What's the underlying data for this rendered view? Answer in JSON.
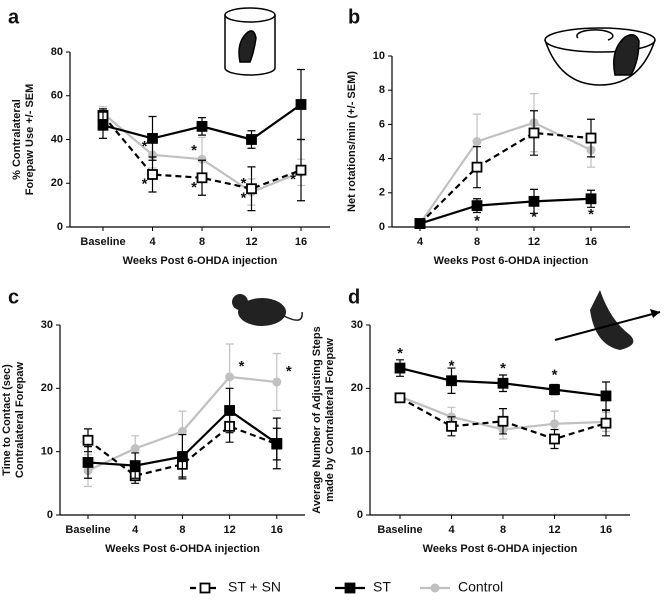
{
  "chart_data": [
    {
      "type": "line",
      "panel": "a",
      "xlabel": "Weeks Post 6-OHDA injection",
      "ylabel": [
        "% Contralateral",
        "Forepaw Use +/- SEM"
      ],
      "categories": [
        "Baseline",
        "4",
        "8",
        "12",
        "16"
      ],
      "ylim": [
        0,
        80
      ],
      "yticks": [
        0,
        20,
        40,
        60,
        80
      ],
      "series": [
        {
          "name": "ST + SN",
          "color": "#000000",
          "dashed": true,
          "marker": "open-square",
          "values": [
            51,
            24,
            22.5,
            17.5,
            26
          ],
          "errors": [
            3,
            8,
            8,
            10,
            14
          ],
          "sig": [
            null,
            "*",
            "*",
            "*",
            "*"
          ]
        },
        {
          "name": "ST",
          "color": "#000000",
          "dashed": false,
          "marker": "filled-square",
          "values": [
            46.5,
            40.5,
            46,
            40,
            56
          ],
          "errors": [
            6,
            10,
            4,
            4,
            16
          ],
          "sig": [
            null,
            null,
            null,
            null,
            null
          ]
        },
        {
          "name": "Control",
          "color": "#c0c0c0",
          "dashed": false,
          "marker": "circle",
          "values": [
            52,
            33,
            31,
            16,
            25
          ],
          "errors": [
            3,
            6,
            10,
            6,
            6
          ],
          "sig": [
            null,
            "*",
            "*",
            "*",
            null
          ]
        }
      ]
    },
    {
      "type": "line",
      "panel": "b",
      "xlabel": "Weeks Post 6-OHDA injection",
      "ylabel": [
        "Net rotations/min (+/- SEM)"
      ],
      "categories": [
        "4",
        "8",
        "12",
        "16"
      ],
      "ylim": [
        0,
        10
      ],
      "yticks": [
        0,
        2,
        4,
        6,
        8,
        10
      ],
      "series": [
        {
          "values": [
            0.2,
            3.5,
            5.5,
            5.2
          ],
          "errors": [
            0.1,
            1.2,
            1.3,
            1.1
          ],
          "sig": [
            null,
            null,
            null,
            null
          ]
        },
        {
          "values": [
            0.2,
            1.25,
            1.5,
            1.65
          ],
          "errors": [
            0.1,
            0.4,
            0.7,
            0.5
          ],
          "sig": [
            null,
            "*",
            "*",
            "*"
          ]
        },
        {
          "values": [
            0.2,
            5.0,
            6.1,
            4.5
          ],
          "errors": [
            0.1,
            1.6,
            1.7,
            1.0
          ],
          "sig": [
            null,
            null,
            null,
            null
          ]
        }
      ]
    },
    {
      "type": "line",
      "panel": "c",
      "xlabel": "Weeks Post 6-OHDA injection",
      "ylabel": [
        "Time to Contact (sec)",
        "Contralateral Forepaw"
      ],
      "categories": [
        "Baseline",
        "4",
        "8",
        "12",
        "16"
      ],
      "ylim": [
        0,
        30
      ],
      "yticks": [
        0,
        10,
        20,
        30
      ],
      "series": [
        {
          "values": [
            11.8,
            6.2,
            8,
            14,
            11.2
          ],
          "errors": [
            1.8,
            1.2,
            2,
            2.5,
            2.5
          ],
          "sig": [
            null,
            null,
            null,
            null,
            null
          ]
        },
        {
          "values": [
            8.3,
            7.8,
            9.2,
            16.5,
            11.3
          ],
          "errors": [
            2.5,
            2,
            3.5,
            3.5,
            4
          ],
          "sig": [
            null,
            null,
            null,
            null,
            null
          ]
        },
        {
          "values": [
            7,
            10.5,
            13.2,
            21.8,
            21
          ],
          "errors": [
            2.5,
            2,
            3.2,
            5.2,
            4.5
          ],
          "sig": [
            null,
            null,
            null,
            "*",
            "*"
          ]
        }
      ]
    },
    {
      "type": "line",
      "panel": "d",
      "xlabel": "Weeks Post 6-OHDA injection",
      "ylabel": [
        "Average Number of Adjusting Steps",
        "made by Contralateral Forepaw"
      ],
      "categories": [
        "Baseline",
        "4",
        "8",
        "12",
        "16"
      ],
      "ylim": [
        0,
        30
      ],
      "yticks": [
        0,
        10,
        20,
        30
      ],
      "series": [
        {
          "values": [
            18.5,
            14,
            14.8,
            12,
            14.5
          ],
          "errors": [
            0.7,
            1.5,
            2,
            1.5,
            2
          ],
          "sig": [
            null,
            null,
            null,
            null,
            null
          ]
        },
        {
          "values": [
            23.2,
            21.2,
            20.8,
            19.8,
            18.8
          ],
          "errors": [
            1.3,
            2,
            1.3,
            0.8,
            2.2
          ],
          "sig": [
            "*",
            "*",
            "*",
            "*",
            null
          ]
        },
        {
          "values": [
            18.7,
            15.5,
            13.5,
            14.4,
            14.7
          ],
          "errors": [
            0.5,
            1.5,
            1.5,
            2,
            1.5
          ],
          "sig": [
            null,
            null,
            null,
            null,
            null
          ]
        }
      ]
    }
  ]
}
